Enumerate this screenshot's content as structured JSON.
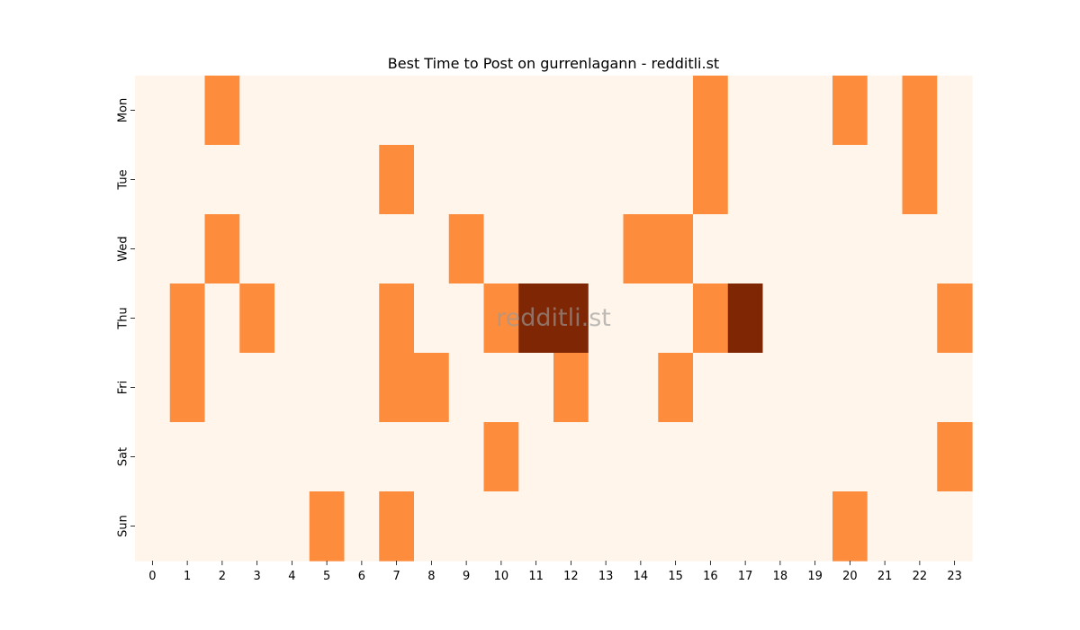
{
  "chart_data": {
    "type": "heatmap",
    "title": "Best Time to Post on gurrenlagann - redditli.st",
    "watermark": "redditli.st",
    "xlabel": "",
    "ylabel": "",
    "x": [
      "0",
      "1",
      "2",
      "3",
      "4",
      "5",
      "6",
      "7",
      "8",
      "9",
      "10",
      "11",
      "12",
      "13",
      "14",
      "15",
      "16",
      "17",
      "18",
      "19",
      "20",
      "21",
      "22",
      "23"
    ],
    "y": [
      "Mon",
      "Tue",
      "Wed",
      "Thu",
      "Fri",
      "Sat",
      "Sun"
    ],
    "values": [
      [
        0,
        0,
        1,
        0,
        0,
        0,
        0,
        0,
        0,
        0,
        0,
        0,
        0,
        0,
        0,
        0,
        1,
        0,
        0,
        0,
        1,
        0,
        1,
        0
      ],
      [
        0,
        0,
        0,
        0,
        0,
        0,
        0,
        1,
        0,
        0,
        0,
        0,
        0,
        0,
        0,
        0,
        1,
        0,
        0,
        0,
        0,
        0,
        1,
        0
      ],
      [
        0,
        0,
        1,
        0,
        0,
        0,
        0,
        0,
        0,
        1,
        0,
        0,
        0,
        0,
        1,
        1,
        0,
        0,
        0,
        0,
        0,
        0,
        0,
        0
      ],
      [
        0,
        1,
        0,
        1,
        0,
        0,
        0,
        1,
        0,
        0,
        1,
        2,
        2,
        0,
        0,
        0,
        1,
        2,
        0,
        0,
        0,
        0,
        0,
        1
      ],
      [
        0,
        1,
        0,
        0,
        0,
        0,
        0,
        1,
        1,
        0,
        0,
        0,
        1,
        0,
        0,
        1,
        0,
        0,
        0,
        0,
        0,
        0,
        0,
        0
      ],
      [
        0,
        0,
        0,
        0,
        0,
        0,
        0,
        0,
        0,
        0,
        1,
        0,
        0,
        0,
        0,
        0,
        0,
        0,
        0,
        0,
        0,
        0,
        0,
        1
      ],
      [
        0,
        0,
        0,
        0,
        0,
        1,
        0,
        1,
        0,
        0,
        0,
        0,
        0,
        0,
        0,
        0,
        0,
        0,
        0,
        0,
        1,
        0,
        0,
        0
      ]
    ],
    "colormap": "Oranges",
    "colors": {
      "0": "#fff5eb",
      "1": "#fd8d3c",
      "2": "#7f2704"
    },
    "legend": "none",
    "grid": false
  }
}
